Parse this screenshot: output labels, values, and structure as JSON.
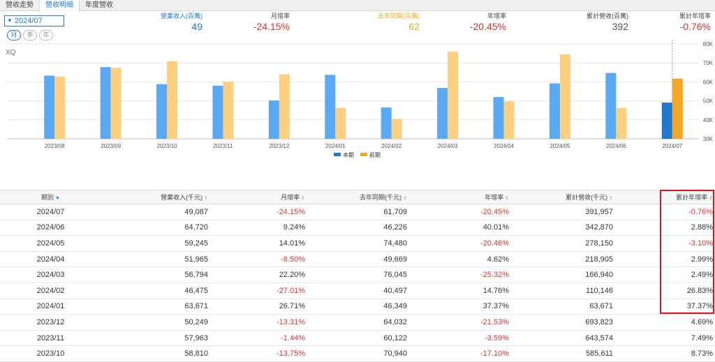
{
  "tabs": [
    "營收走勢",
    "營收明細",
    "年度營收"
  ],
  "period": {
    "value": "2024/07",
    "modes": [
      "月",
      "季",
      "年"
    ]
  },
  "summary": [
    {
      "label": "營業收入(百萬)",
      "value": "49"
    },
    {
      "label": "月增率",
      "value": "-24.15%"
    },
    {
      "label": "去年同期(百萬)",
      "value": "62"
    },
    {
      "label": "年增率",
      "value": "-20.45%"
    },
    {
      "label": "累計營收(百萬)",
      "value": "392"
    },
    {
      "label": "累計年增率",
      "value": "-0.76%"
    }
  ],
  "watermark": "XQ",
  "colors": {
    "current": "#5aa9f5",
    "current_highlight": "#1f78d1",
    "previous": "#fdcf7e",
    "previous_highlight": "#f5a623",
    "negative": "#e0332e"
  },
  "chart_data": {
    "type": "bar",
    "categories": [
      "2023/08",
      "2023/09",
      "2023/10",
      "2023/11",
      "2023/12",
      "2024/01",
      "2024/02",
      "2024/03",
      "2024/04",
      "2024/05",
      "2024/06",
      "2024/07"
    ],
    "series": [
      {
        "name": "本期",
        "values": [
          63.3,
          67.8,
          58.8,
          58.0,
          50.2,
          63.7,
          46.5,
          56.8,
          52.0,
          59.2,
          64.7,
          49.1
        ]
      },
      {
        "name": "前期",
        "values": [
          62.8,
          67.4,
          70.9,
          60.1,
          64.0,
          46.3,
          40.5,
          76.0,
          49.7,
          74.5,
          46.2,
          61.7
        ]
      }
    ],
    "ylim": [
      30,
      80
    ],
    "yticks": [
      "30K",
      "40K",
      "50K",
      "60K",
      "70K",
      "80K"
    ],
    "ytick_values": [
      30,
      40,
      50,
      60,
      70,
      80
    ],
    "legend": [
      "本期",
      "前期"
    ],
    "legend_position": "bottom-center",
    "highlight_index": 11
  },
  "table": {
    "headers": [
      "期別",
      "營業收入(千元)",
      "月增率",
      "去年同期(千元)",
      "年增率",
      "累計營收(千元)",
      "累計年增率"
    ],
    "rows": [
      [
        "2024/07",
        "49,087",
        "-24.15%",
        "61,709",
        "-20.45%",
        "391,957",
        "-0.76%"
      ],
      [
        "2024/06",
        "64,720",
        "9.24%",
        "46,226",
        "40.01%",
        "342,870",
        "2.88%"
      ],
      [
        "2024/05",
        "59,245",
        "14.01%",
        "74,480",
        "-20.46%",
        "278,150",
        "-3.10%"
      ],
      [
        "2024/04",
        "51,965",
        "-8.50%",
        "49,669",
        "4.62%",
        "218,905",
        "2.99%"
      ],
      [
        "2024/03",
        "56,794",
        "22.20%",
        "76,045",
        "-25.32%",
        "166,940",
        "2.49%"
      ],
      [
        "2024/02",
        "46,475",
        "-27.01%",
        "40,497",
        "14.76%",
        "110,146",
        "26.83%"
      ],
      [
        "2024/01",
        "63,671",
        "26.71%",
        "46,349",
        "37.37%",
        "63,671",
        "37.37%"
      ],
      [
        "2023/12",
        "50,249",
        "-13.31%",
        "64,032",
        "-21.53%",
        "693,823",
        "4.69%"
      ],
      [
        "2023/11",
        "57,963",
        "-1.44%",
        "60,122",
        "-3.59%",
        "643,574",
        "7.49%"
      ],
      [
        "2023/10",
        "58,810",
        "-13.75%",
        "70,940",
        "-17.10%",
        "585,611",
        "8.73%"
      ]
    ]
  }
}
